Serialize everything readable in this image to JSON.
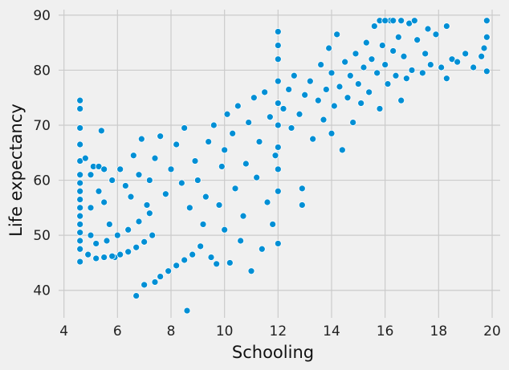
{
  "chart_data": {
    "type": "scatter",
    "title": "",
    "xlabel": "Schooling",
    "ylabel": "Life expectancy",
    "xlim": [
      3.8,
      20.3
    ],
    "ylim": [
      35.0,
      91.0
    ],
    "xticks": [
      4,
      6,
      8,
      10,
      12,
      14,
      16,
      18,
      20
    ],
    "yticks": [
      40,
      50,
      60,
      70,
      80,
      90
    ],
    "grid": true,
    "legend": "none",
    "colors": {
      "background": "#f0f0f0",
      "grid": "#cbcbcb",
      "point": "#008fd5",
      "edge": "#ffffff"
    },
    "series": [
      {
        "points": [
          [
            4.6,
            45.2
          ],
          [
            4.6,
            47.5
          ],
          [
            4.6,
            49.0
          ],
          [
            4.6,
            50.5
          ],
          [
            4.6,
            52.0
          ],
          [
            4.6,
            53.5
          ],
          [
            4.6,
            55.0
          ],
          [
            4.6,
            56.5
          ],
          [
            4.6,
            58.0
          ],
          [
            4.6,
            59.5
          ],
          [
            4.6,
            61.0
          ],
          [
            4.6,
            63.5
          ],
          [
            4.6,
            66.5
          ],
          [
            4.6,
            69.5
          ],
          [
            4.6,
            73.0
          ],
          [
            4.6,
            74.5
          ],
          [
            4.9,
            46.5
          ],
          [
            5.0,
            50.0
          ],
          [
            5.0,
            55.0
          ],
          [
            5.0,
            61.0
          ],
          [
            4.8,
            64.0
          ],
          [
            5.1,
            62.5
          ],
          [
            5.3,
            58.0
          ],
          [
            5.3,
            62.5
          ],
          [
            5.4,
            69.0
          ],
          [
            5.5,
            56.0
          ],
          [
            5.5,
            62.0
          ],
          [
            5.7,
            52.0
          ],
          [
            5.8,
            60.0
          ],
          [
            5.9,
            46.0
          ],
          [
            5.2,
            45.8
          ],
          [
            5.5,
            46.0
          ],
          [
            5.8,
            46.2
          ],
          [
            6.1,
            46.5
          ],
          [
            6.4,
            47.0
          ],
          [
            6.7,
            47.8
          ],
          [
            7.0,
            48.8
          ],
          [
            7.3,
            50.0
          ],
          [
            5.2,
            48.5
          ],
          [
            5.6,
            49.0
          ],
          [
            6.0,
            50.0
          ],
          [
            6.4,
            51.0
          ],
          [
            6.8,
            52.5
          ],
          [
            7.2,
            54.0
          ],
          [
            6.1,
            62.0
          ],
          [
            6.3,
            59.0
          ],
          [
            6.5,
            57.0
          ],
          [
            6.6,
            64.5
          ],
          [
            6.9,
            67.5
          ],
          [
            6.8,
            61.0
          ],
          [
            7.1,
            55.5
          ],
          [
            7.2,
            60.0
          ],
          [
            7.4,
            64.0
          ],
          [
            7.6,
            68.0
          ],
          [
            6.7,
            39.0
          ],
          [
            7.0,
            41.0
          ],
          [
            7.4,
            41.5
          ],
          [
            7.6,
            42.5
          ],
          [
            7.9,
            43.5
          ],
          [
            8.2,
            44.5
          ],
          [
            8.5,
            45.5
          ],
          [
            8.6,
            36.3
          ],
          [
            8.8,
            46.5
          ],
          [
            7.8,
            57.5
          ],
          [
            8.0,
            62.0
          ],
          [
            8.2,
            66.5
          ],
          [
            8.4,
            59.5
          ],
          [
            8.5,
            69.5
          ],
          [
            8.7,
            55.0
          ],
          [
            8.9,
            63.5
          ],
          [
            9.0,
            60.0
          ],
          [
            9.1,
            48.0
          ],
          [
            9.2,
            52.0
          ],
          [
            9.3,
            57.0
          ],
          [
            9.4,
            67.0
          ],
          [
            9.5,
            46.0
          ],
          [
            9.6,
            70.0
          ],
          [
            9.7,
            44.8
          ],
          [
            9.8,
            55.5
          ],
          [
            9.9,
            62.5
          ],
          [
            10.0,
            65.5
          ],
          [
            10.0,
            51.0
          ],
          [
            10.1,
            72.0
          ],
          [
            10.2,
            45.0
          ],
          [
            10.3,
            68.5
          ],
          [
            10.4,
            58.5
          ],
          [
            10.5,
            73.5
          ],
          [
            10.6,
            49.0
          ],
          [
            10.7,
            53.5
          ],
          [
            10.8,
            63.0
          ],
          [
            10.9,
            70.5
          ],
          [
            11.0,
            43.5
          ],
          [
            11.1,
            75.0
          ],
          [
            11.2,
            60.5
          ],
          [
            11.3,
            67.0
          ],
          [
            11.4,
            47.5
          ],
          [
            11.5,
            76.0
          ],
          [
            11.6,
            56.0
          ],
          [
            11.7,
            71.5
          ],
          [
            11.8,
            52.0
          ],
          [
            11.9,
            64.5
          ],
          [
            12.0,
            48.5
          ],
          [
            12.0,
            58.0
          ],
          [
            12.0,
            62.0
          ],
          [
            12.0,
            66.0
          ],
          [
            12.0,
            70.0
          ],
          [
            12.0,
            74.0
          ],
          [
            12.0,
            78.0
          ],
          [
            12.0,
            82.0
          ],
          [
            12.0,
            84.5
          ],
          [
            12.0,
            87.0
          ],
          [
            12.2,
            73.0
          ],
          [
            12.4,
            76.5
          ],
          [
            12.5,
            69.5
          ],
          [
            12.6,
            79.0
          ],
          [
            12.8,
            72.0
          ],
          [
            12.9,
            55.5
          ],
          [
            12.9,
            58.5
          ],
          [
            13.0,
            75.5
          ],
          [
            13.2,
            78.0
          ],
          [
            13.3,
            67.5
          ],
          [
            13.5,
            74.5
          ],
          [
            13.6,
            81.0
          ],
          [
            13.7,
            71.0
          ],
          [
            13.8,
            76.5
          ],
          [
            13.9,
            84.0
          ],
          [
            14.0,
            68.5
          ],
          [
            14.0,
            79.5
          ],
          [
            14.1,
            73.5
          ],
          [
            14.2,
            86.5
          ],
          [
            14.3,
            77.0
          ],
          [
            14.4,
            65.5
          ],
          [
            14.5,
            81.5
          ],
          [
            14.6,
            75.0
          ],
          [
            14.7,
            79.0
          ],
          [
            14.8,
            70.5
          ],
          [
            14.9,
            83.0
          ],
          [
            15.0,
            77.5
          ],
          [
            15.1,
            74.0
          ],
          [
            15.2,
            80.5
          ],
          [
            15.3,
            85.0
          ],
          [
            15.4,
            76.0
          ],
          [
            15.5,
            82.0
          ],
          [
            15.6,
            88.0
          ],
          [
            15.7,
            79.5
          ],
          [
            15.8,
            73.0
          ],
          [
            15.9,
            84.5
          ],
          [
            16.0,
            81.0
          ],
          [
            16.1,
            77.5
          ],
          [
            16.2,
            89.0
          ],
          [
            16.3,
            83.5
          ],
          [
            16.4,
            79.0
          ],
          [
            16.5,
            86.0
          ],
          [
            16.6,
            74.5
          ],
          [
            16.7,
            82.5
          ],
          [
            16.8,
            78.5
          ],
          [
            16.9,
            88.5
          ],
          [
            17.0,
            80.0
          ],
          [
            17.2,
            85.5
          ],
          [
            17.4,
            79.5
          ],
          [
            17.5,
            83.0
          ],
          [
            17.7,
            81.0
          ],
          [
            17.9,
            86.5
          ],
          [
            18.1,
            80.5
          ],
          [
            18.3,
            78.5
          ],
          [
            18.5,
            82.0
          ],
          [
            18.7,
            81.5
          ],
          [
            19.0,
            83.0
          ],
          [
            19.3,
            80.5
          ],
          [
            19.6,
            82.5
          ],
          [
            19.8,
            79.8
          ],
          [
            19.8,
            86.0
          ],
          [
            19.8,
            89.0
          ],
          [
            19.7,
            84.0
          ],
          [
            16.6,
            89.0
          ],
          [
            17.1,
            89.0
          ],
          [
            15.8,
            89.0
          ],
          [
            16.0,
            89.0
          ],
          [
            16.3,
            89.0
          ],
          [
            17.6,
            87.5
          ],
          [
            18.3,
            88.0
          ]
        ]
      }
    ]
  }
}
